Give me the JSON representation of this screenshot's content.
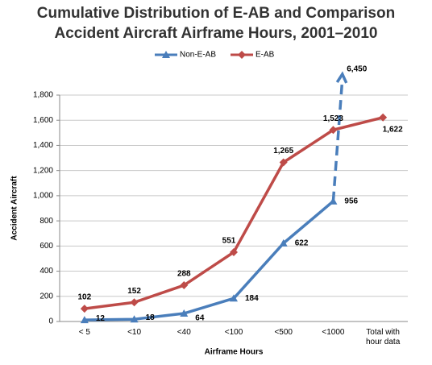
{
  "chart_data": {
    "type": "line",
    "title": "Cumulative Distribution of E-AB and Comparison\nAccident Aircraft Airframe Hours, 2001–2010",
    "x_label": "Airframe Hours",
    "y_label": "Accident Aircraft",
    "categories": [
      "< 5",
      "<10",
      "<40",
      "<100",
      "<500",
      "<1000",
      "Total with\nhour data"
    ],
    "series": [
      {
        "name": "Non-E-AB",
        "color": "#4a7ebb",
        "marker": "triangle",
        "values": [
          12,
          18,
          64,
          184,
          622,
          956,
          6450
        ],
        "value_labels": [
          "12",
          "18",
          "64",
          "184",
          "622",
          "956",
          "6,450"
        ]
      },
      {
        "name": "E-AB",
        "color": "#be4b48",
        "marker": "diamond",
        "values": [
          102,
          152,
          288,
          551,
          1265,
          1523,
          1622
        ],
        "value_labels": [
          "102",
          "152",
          "288",
          "551",
          "1,265",
          "1,523",
          "1,622"
        ]
      }
    ],
    "ylim": [
      0,
      1800
    ],
    "yticks": [
      0,
      200,
      400,
      600,
      800,
      {
        "value": 1000,
        "label": "1,000"
      },
      {
        "value": 1200,
        "label": "1,200"
      },
      {
        "value": 1400,
        "label": "1,400"
      },
      {
        "value": 1600,
        "label": "1,600"
      },
      {
        "value": 1800,
        "label": "1,800"
      }
    ],
    "grid": true,
    "legend": "top"
  }
}
